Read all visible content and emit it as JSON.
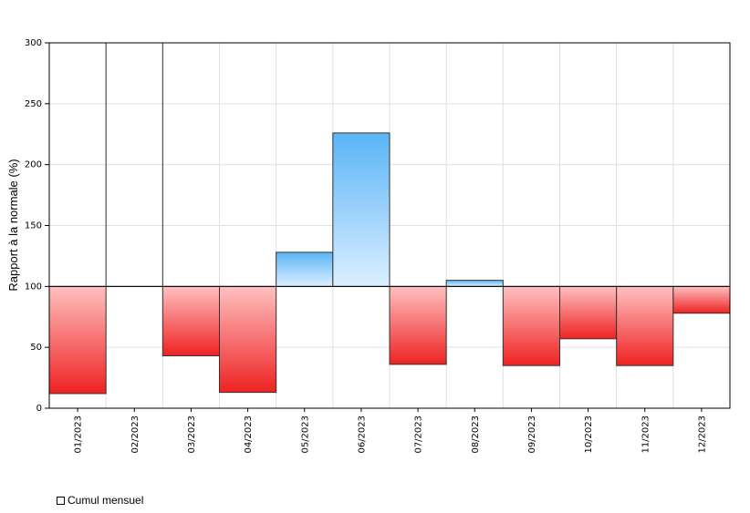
{
  "chart_data": {
    "type": "bar",
    "baseline": 100,
    "categories": [
      "01/2023",
      "02/2023",
      "03/2023",
      "04/2023",
      "05/2023",
      "06/2023",
      "07/2023",
      "08/2023",
      "09/2023",
      "10/2023",
      "11/2023",
      "12/2023"
    ],
    "series": [
      {
        "name": "Cumul mensuel",
        "values": [
          12,
          300,
          43,
          13,
          128,
          226,
          36,
          105,
          35,
          57,
          35,
          78
        ]
      }
    ],
    "ylabel": "Rapport à la normale (%)",
    "ylim": [
      0,
      300
    ],
    "yticks": [
      0,
      50,
      100,
      150,
      200,
      250,
      300
    ],
    "grid": true,
    "legend_position": "bottom-left",
    "colors": {
      "above_top": "#5ab4f7",
      "above_bottom": "#dcefff",
      "below_top": "#ffc0c0",
      "below_bottom": "#ee2222",
      "outline": "#333333",
      "grid": "#e0e0e0"
    }
  }
}
